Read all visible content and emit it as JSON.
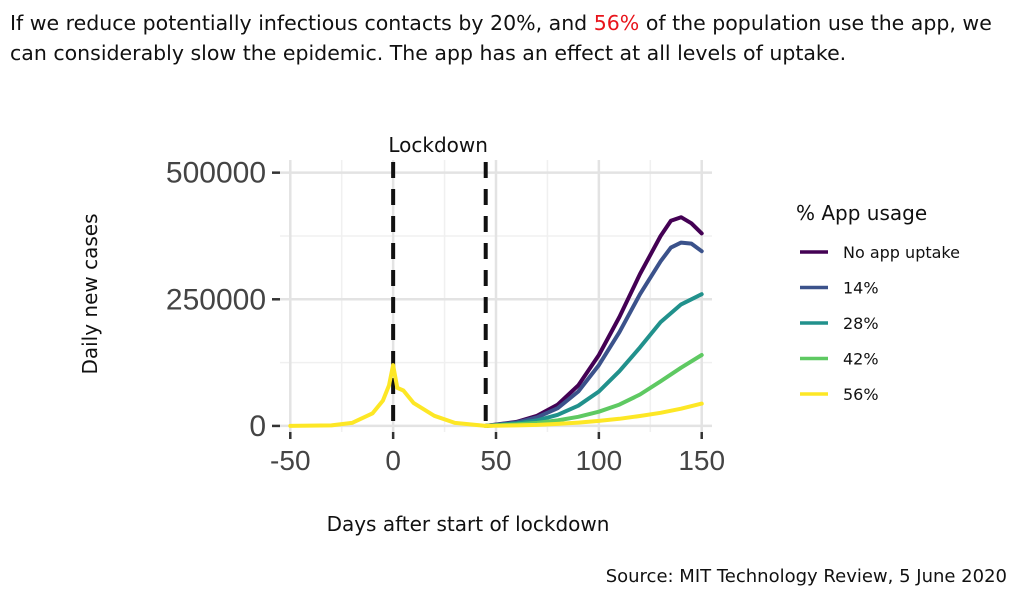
{
  "headline": {
    "part1": "If we reduce potentially infectious contacts by 20%, and ",
    "highlight": "56%",
    "part2": " of the population use the app, we can considerably slow the epidemic. The app has an effect at all levels of uptake.",
    "highlight_color": "#e8141b"
  },
  "source": "Source: MIT Technology Review, 5 June 2020",
  "chart_data": {
    "type": "line",
    "title": "",
    "xlabel": "Days after start of lockdown",
    "ylabel": "Daily new cases",
    "xlim": [
      -55,
      155
    ],
    "ylim": [
      -12000,
      525000
    ],
    "xticks": [
      -50,
      0,
      50,
      100,
      150
    ],
    "xtick_labels": [
      "-50",
      "0",
      "50",
      "100",
      "150"
    ],
    "yticks": [
      0,
      250000,
      500000
    ],
    "ytick_labels": [
      "0",
      "250000",
      "500000"
    ],
    "grid": true,
    "annotations": [
      {
        "text": "Lockdown",
        "x": 0
      },
      {
        "vline_x": 0
      },
      {
        "vline_x": 45
      }
    ],
    "legend": {
      "title": "% App usage",
      "placement": "right"
    },
    "shared_x": [
      -50,
      -30,
      -20,
      -10,
      -5,
      -2,
      0,
      2,
      5,
      10,
      20,
      30,
      45
    ],
    "shared_y": [
      0,
      1000,
      6000,
      25000,
      50000,
      80000,
      120000,
      75000,
      70000,
      45000,
      20000,
      6000,
      0
    ],
    "series": [
      {
        "name": "No app uptake",
        "color": "#440154",
        "x": [
          45,
          60,
          70,
          80,
          90,
          100,
          110,
          120,
          130,
          135,
          140,
          145,
          150
        ],
        "y": [
          0,
          8000,
          20000,
          42000,
          80000,
          140000,
          215000,
          300000,
          375000,
          405000,
          412000,
          400000,
          380000
        ]
      },
      {
        "name": "14%",
        "color": "#3b528b",
        "x": [
          45,
          60,
          70,
          80,
          90,
          100,
          110,
          120,
          130,
          135,
          140,
          145,
          150
        ],
        "y": [
          0,
          7000,
          17000,
          35000,
          68000,
          120000,
          185000,
          260000,
          325000,
          352000,
          362000,
          360000,
          345000
        ]
      },
      {
        "name": "28%",
        "color": "#21918c",
        "x": [
          45,
          60,
          70,
          80,
          90,
          100,
          110,
          120,
          130,
          140,
          150
        ],
        "y": [
          0,
          5000,
          11000,
          22000,
          40000,
          68000,
          108000,
          155000,
          205000,
          240000,
          260000
        ]
      },
      {
        "name": "42%",
        "color": "#5ec962",
        "x": [
          45,
          60,
          70,
          80,
          90,
          100,
          110,
          120,
          130,
          140,
          150
        ],
        "y": [
          0,
          3000,
          6000,
          11000,
          18000,
          28000,
          42000,
          62000,
          88000,
          115000,
          140000
        ]
      },
      {
        "name": "56%",
        "color": "#fde725",
        "x": [
          45,
          60,
          70,
          80,
          90,
          100,
          110,
          120,
          130,
          140,
          150
        ],
        "y": [
          0,
          1000,
          2000,
          4000,
          6500,
          10000,
          14000,
          19500,
          26000,
          34000,
          44000
        ]
      }
    ]
  }
}
